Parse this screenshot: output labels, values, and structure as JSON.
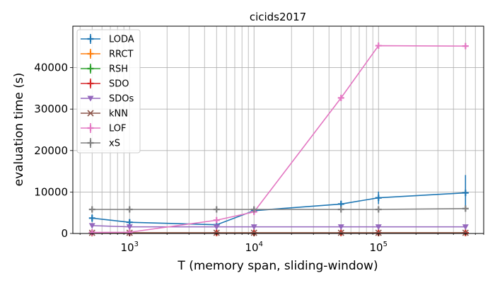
{
  "chart_data": {
    "type": "line",
    "title": "cicids2017",
    "xlabel": "T (memory span, sliding-window)",
    "ylabel": "evaluation time (s)",
    "xscale": "log",
    "xlim": [
      350,
      700000
    ],
    "ylim": [
      0,
      50000
    ],
    "x_tick_labels": [
      {
        "value": 1000,
        "base": "10",
        "exp": "3"
      },
      {
        "value": 10000,
        "base": "10",
        "exp": "4"
      },
      {
        "value": 100000,
        "base": "10",
        "exp": "5"
      }
    ],
    "y_ticks": [
      0,
      10000,
      20000,
      30000,
      40000
    ],
    "y_tick_labels": [
      "0",
      "10000",
      "20000",
      "30000",
      "40000"
    ],
    "grid": true,
    "legend_position": "top-left",
    "x": [
      500,
      1000,
      5000,
      10000,
      50000,
      100000,
      500000
    ],
    "series": [
      {
        "name": "LODA",
        "color": "#1f77b4",
        "marker": "plus",
        "values": [
          3700,
          2700,
          2100,
          5500,
          7100,
          8600,
          9800
        ],
        "err": [
          900,
          600,
          500,
          500,
          800,
          1500,
          4300
        ]
      },
      {
        "name": "RRCT",
        "color": "#ff7f0e",
        "marker": "plus",
        "values": [
          150,
          150,
          150,
          150,
          150,
          150,
          150
        ],
        "err": [
          0,
          0,
          0,
          0,
          0,
          0,
          0
        ]
      },
      {
        "name": "RSH",
        "color": "#2ca02c",
        "marker": "plus",
        "values": [
          150,
          150,
          150,
          150,
          150,
          150,
          150
        ],
        "err": [
          0,
          0,
          0,
          0,
          0,
          0,
          0
        ]
      },
      {
        "name": "SDO",
        "color": "#d62728",
        "marker": "plus",
        "values": [
          150,
          150,
          150,
          150,
          150,
          150,
          150
        ],
        "err": [
          0,
          0,
          0,
          0,
          0,
          0,
          0
        ]
      },
      {
        "name": "SDOs",
        "color": "#9467bd",
        "marker": "triangle-down",
        "values": [
          1900,
          1600,
          1600,
          1600,
          1600,
          1600,
          1600
        ],
        "err": [
          0,
          0,
          0,
          0,
          0,
          0,
          0
        ]
      },
      {
        "name": "kNN",
        "color": "#8c564b",
        "marker": "x",
        "values": [
          150,
          150,
          150,
          150,
          150,
          150,
          150
        ],
        "err": [
          0,
          0,
          0,
          0,
          0,
          0,
          0
        ]
      },
      {
        "name": "LOF",
        "color": "#e377c2",
        "marker": "plus",
        "values": [
          250,
          300,
          3200,
          5200,
          32700,
          45300,
          45200
        ],
        "err": [
          0,
          0,
          0,
          0,
          0,
          0,
          0
        ]
      },
      {
        "name": "xS",
        "color": "#7f7f7f",
        "marker": "plus",
        "values": [
          5800,
          5800,
          5800,
          5800,
          5800,
          5800,
          6000
        ],
        "err": [
          0,
          0,
          0,
          0,
          0,
          0,
          0
        ]
      }
    ]
  }
}
